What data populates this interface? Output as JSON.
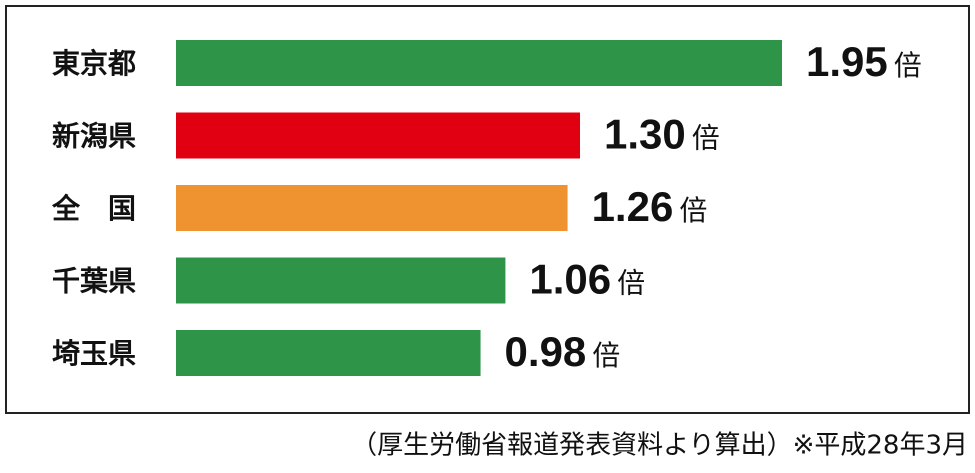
{
  "chart_data": {
    "type": "bar",
    "orientation": "horizontal",
    "categories": [
      "東京都",
      "新潟県",
      "全　国",
      "千葉県",
      "埼玉県"
    ],
    "values": [
      1.95,
      1.3,
      1.26,
      1.06,
      0.98
    ],
    "value_labels": [
      "1.95",
      "1.30",
      "1.26",
      "1.06",
      "0.98"
    ],
    "unit": "倍",
    "colors": [
      "#2e9447",
      "#e00012",
      "#ee9330",
      "#2e9447",
      "#2e9447"
    ],
    "source": "（厚生労働省報道発表資料より算出）※平成28年3月"
  }
}
